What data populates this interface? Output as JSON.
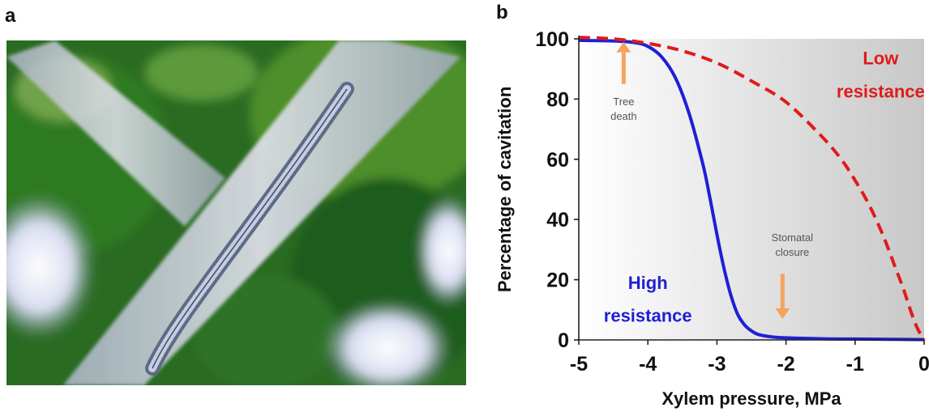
{
  "panels": {
    "a": {
      "letter": "a"
    },
    "b": {
      "letter": "b"
    }
  },
  "colors": {
    "high_resistance": "#1f1fd6",
    "low_resistance": "#e01b1b",
    "arrow": "#f4a460",
    "annotation_text": "#555555"
  },
  "chart_data": {
    "type": "line",
    "xlabel": "Xylem pressure, MPa",
    "ylabel": "Percentage of cavitation",
    "xlim": [
      -5,
      0
    ],
    "ylim": [
      0,
      100
    ],
    "x_ticks": [
      "-5",
      "-4",
      "-3",
      "-2",
      "-1",
      "0"
    ],
    "y_ticks": [
      "0",
      "20",
      "40",
      "60",
      "80",
      "100"
    ],
    "grid": false,
    "background": "gradient white to gray",
    "series": [
      {
        "label_lines": [
          "High",
          "resistance"
        ],
        "style": "solid",
        "color": "#1f1fd6",
        "x": [
          -5,
          -4.5,
          -4.2,
          -4.0,
          -3.8,
          -3.6,
          -3.4,
          -3.2,
          -3.1,
          -3.0,
          -2.9,
          -2.8,
          -2.7,
          -2.6,
          -2.5,
          -2.4,
          -2.2,
          -2.0,
          -1.5,
          -1.0,
          -0.5,
          0
        ],
        "y": [
          99.5,
          99.3,
          98.8,
          97.5,
          94,
          87,
          75,
          58,
          47,
          35,
          24,
          15,
          8.5,
          5,
          3,
          1.8,
          1.0,
          0.7,
          0.4,
          0.3,
          0.2,
          0.1
        ]
      },
      {
        "label_lines": [
          "Low",
          "resistance"
        ],
        "style": "dashed",
        "color": "#e01b1b",
        "x": [
          -5,
          -4.5,
          -4.0,
          -3.5,
          -3.0,
          -2.5,
          -2.0,
          -1.5,
          -1.2,
          -1.0,
          -0.8,
          -0.6,
          -0.4,
          -0.3,
          -0.2,
          -0.1,
          0
        ],
        "y": [
          100.5,
          100,
          98.5,
          96,
          92,
          86,
          79,
          68,
          60,
          53,
          45,
          35,
          23,
          17,
          10,
          4,
          0
        ]
      }
    ],
    "annotations": [
      {
        "text_lines": [
          "Tree",
          "death"
        ],
        "arrow_x": -4.35,
        "arrow_from_y": 85,
        "arrow_to_y": 99,
        "direction": "up"
      },
      {
        "text_lines": [
          "Stomatal",
          "closure"
        ],
        "arrow_x": -2.05,
        "arrow_from_y": 22,
        "arrow_to_y": 7,
        "direction": "down"
      }
    ]
  }
}
